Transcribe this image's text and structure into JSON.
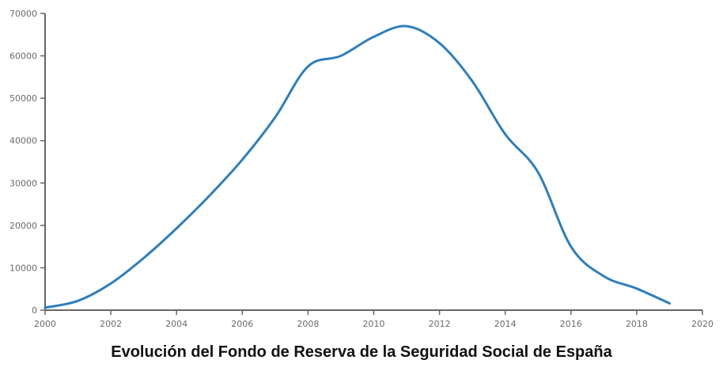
{
  "chart_data": {
    "type": "line",
    "title": "Evolución del Fondo de Reserva de la Seguridad Social de España",
    "xlabel": "",
    "ylabel": "",
    "xlim": [
      2000,
      2020
    ],
    "ylim": [
      0,
      70000
    ],
    "x_ticks": [
      2000,
      2002,
      2004,
      2006,
      2008,
      2010,
      2012,
      2014,
      2016,
      2018,
      2020
    ],
    "y_ticks": [
      0,
      10000,
      20000,
      30000,
      40000,
      50000,
      60000,
      70000
    ],
    "grid": false,
    "legend": "none",
    "series": [
      {
        "color": "#2e7ebd",
        "x": [
          2000,
          2001,
          2002,
          2003,
          2004,
          2005,
          2006,
          2007,
          2008,
          2009,
          2010,
          2011,
          2012,
          2013,
          2014,
          2015,
          2016,
          2017,
          2018,
          2019
        ],
        "values": [
          600,
          2200,
          6300,
          12300,
          19300,
          27000,
          35500,
          45500,
          57500,
          60000,
          64500,
          67000,
          63000,
          54000,
          41500,
          32500,
          15000,
          8000,
          5100,
          1600
        ]
      }
    ]
  }
}
